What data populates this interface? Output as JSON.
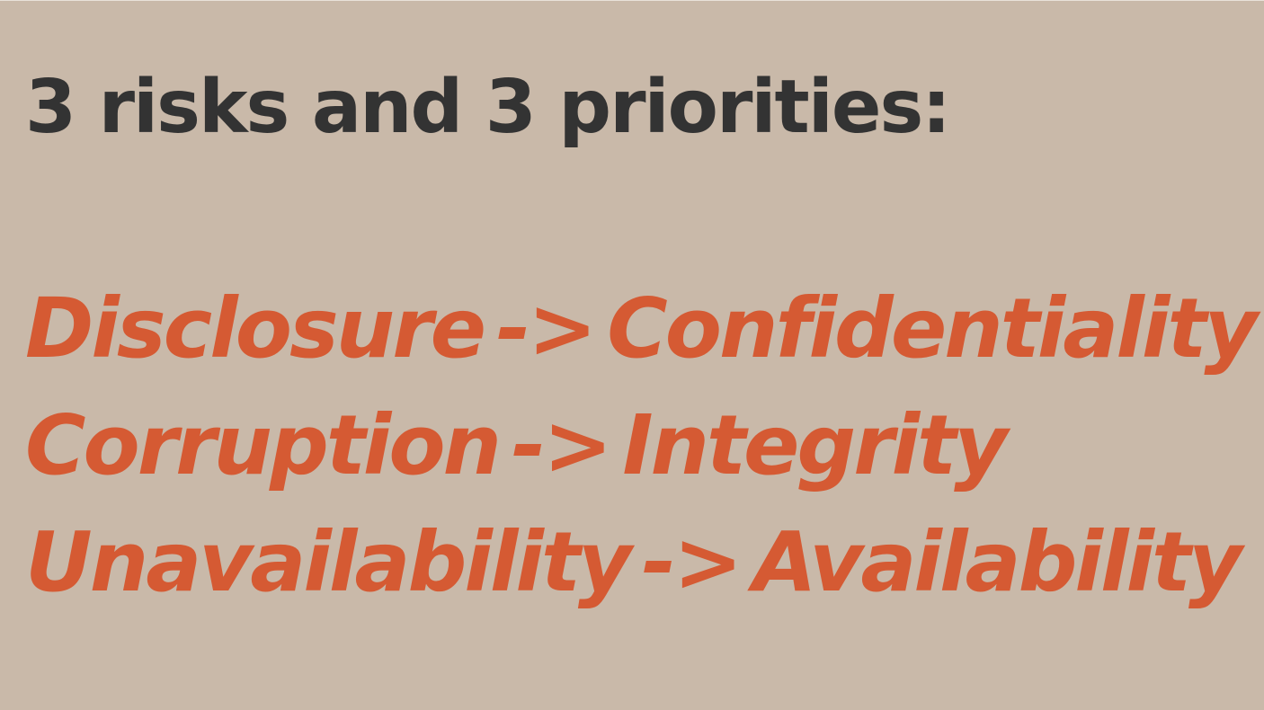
{
  "slide": {
    "title": "3 risks and 3 priorities:",
    "background_color": "#c9b9a9",
    "title_color": "#333333",
    "accent_color": "#d55a33",
    "mappings": [
      {
        "risk": "Disclosure",
        "arrow": "->",
        "priority": "Confidentiality"
      },
      {
        "risk": "Corruption",
        "arrow": "->",
        "priority": "Integrity"
      },
      {
        "risk": "Unavailability",
        "arrow": "->",
        "priority": "Availability"
      }
    ]
  }
}
